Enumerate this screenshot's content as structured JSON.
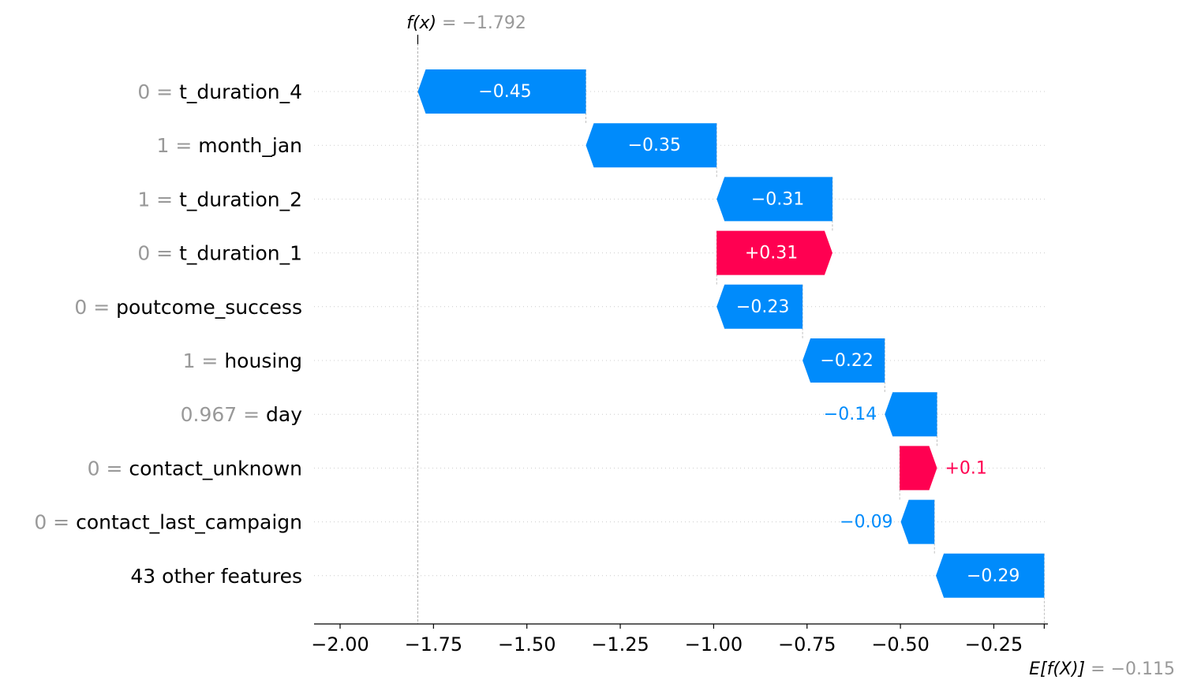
{
  "chart_data": {
    "type": "waterfall",
    "fx": {
      "label": "f(x)",
      "eq": " = −1.792",
      "value": -1.792
    },
    "efx": {
      "label": "E[f(X)]",
      "eq": " = −0.115",
      "value": -0.115
    },
    "xlim": [
      -2.07,
      -0.115
    ],
    "xticks": [
      -2.0,
      -1.75,
      -1.5,
      -1.25,
      -1.0,
      -0.75,
      -0.5,
      -0.25
    ],
    "xtick_labels": [
      "−2.00",
      "−1.75",
      "−1.50",
      "−1.25",
      "−1.00",
      "−0.75",
      "−0.50",
      "−0.25"
    ],
    "colors": {
      "positive": "#ff0051",
      "negative": "#008bfb",
      "value_gray": "#999999",
      "text": "#000000"
    },
    "features": [
      {
        "value": "0",
        "name": "t_duration_4",
        "contribution": -0.45,
        "label": "−0.45",
        "start": -1.342
      },
      {
        "value": "1",
        "name": "month_jan",
        "contribution": -0.35,
        "label": "−0.35",
        "start": -0.992
      },
      {
        "value": "1",
        "name": "t_duration_2",
        "contribution": -0.31,
        "label": "−0.31",
        "start": -0.682
      },
      {
        "value": "0",
        "name": "t_duration_1",
        "contribution": 0.31,
        "label": "+0.31",
        "start": -0.992
      },
      {
        "value": "0",
        "name": "poutcome_success",
        "contribution": -0.23,
        "label": "−0.23",
        "start": -0.762
      },
      {
        "value": "1",
        "name": "housing",
        "contribution": -0.22,
        "label": "−0.22",
        "start": -0.542
      },
      {
        "value": "0.967",
        "name": "day",
        "contribution": -0.14,
        "label": "−0.14",
        "start": -0.402
      },
      {
        "value": "0",
        "name": "contact_unknown",
        "contribution": 0.1,
        "label": "+0.1",
        "start": -0.502
      },
      {
        "value": "0",
        "name": "contact_last_campaign",
        "contribution": -0.09,
        "label": "−0.09",
        "start": -0.409
      },
      {
        "value": "",
        "name": "43 other features",
        "contribution": -0.29,
        "label": "−0.29",
        "start": -0.115
      }
    ]
  }
}
